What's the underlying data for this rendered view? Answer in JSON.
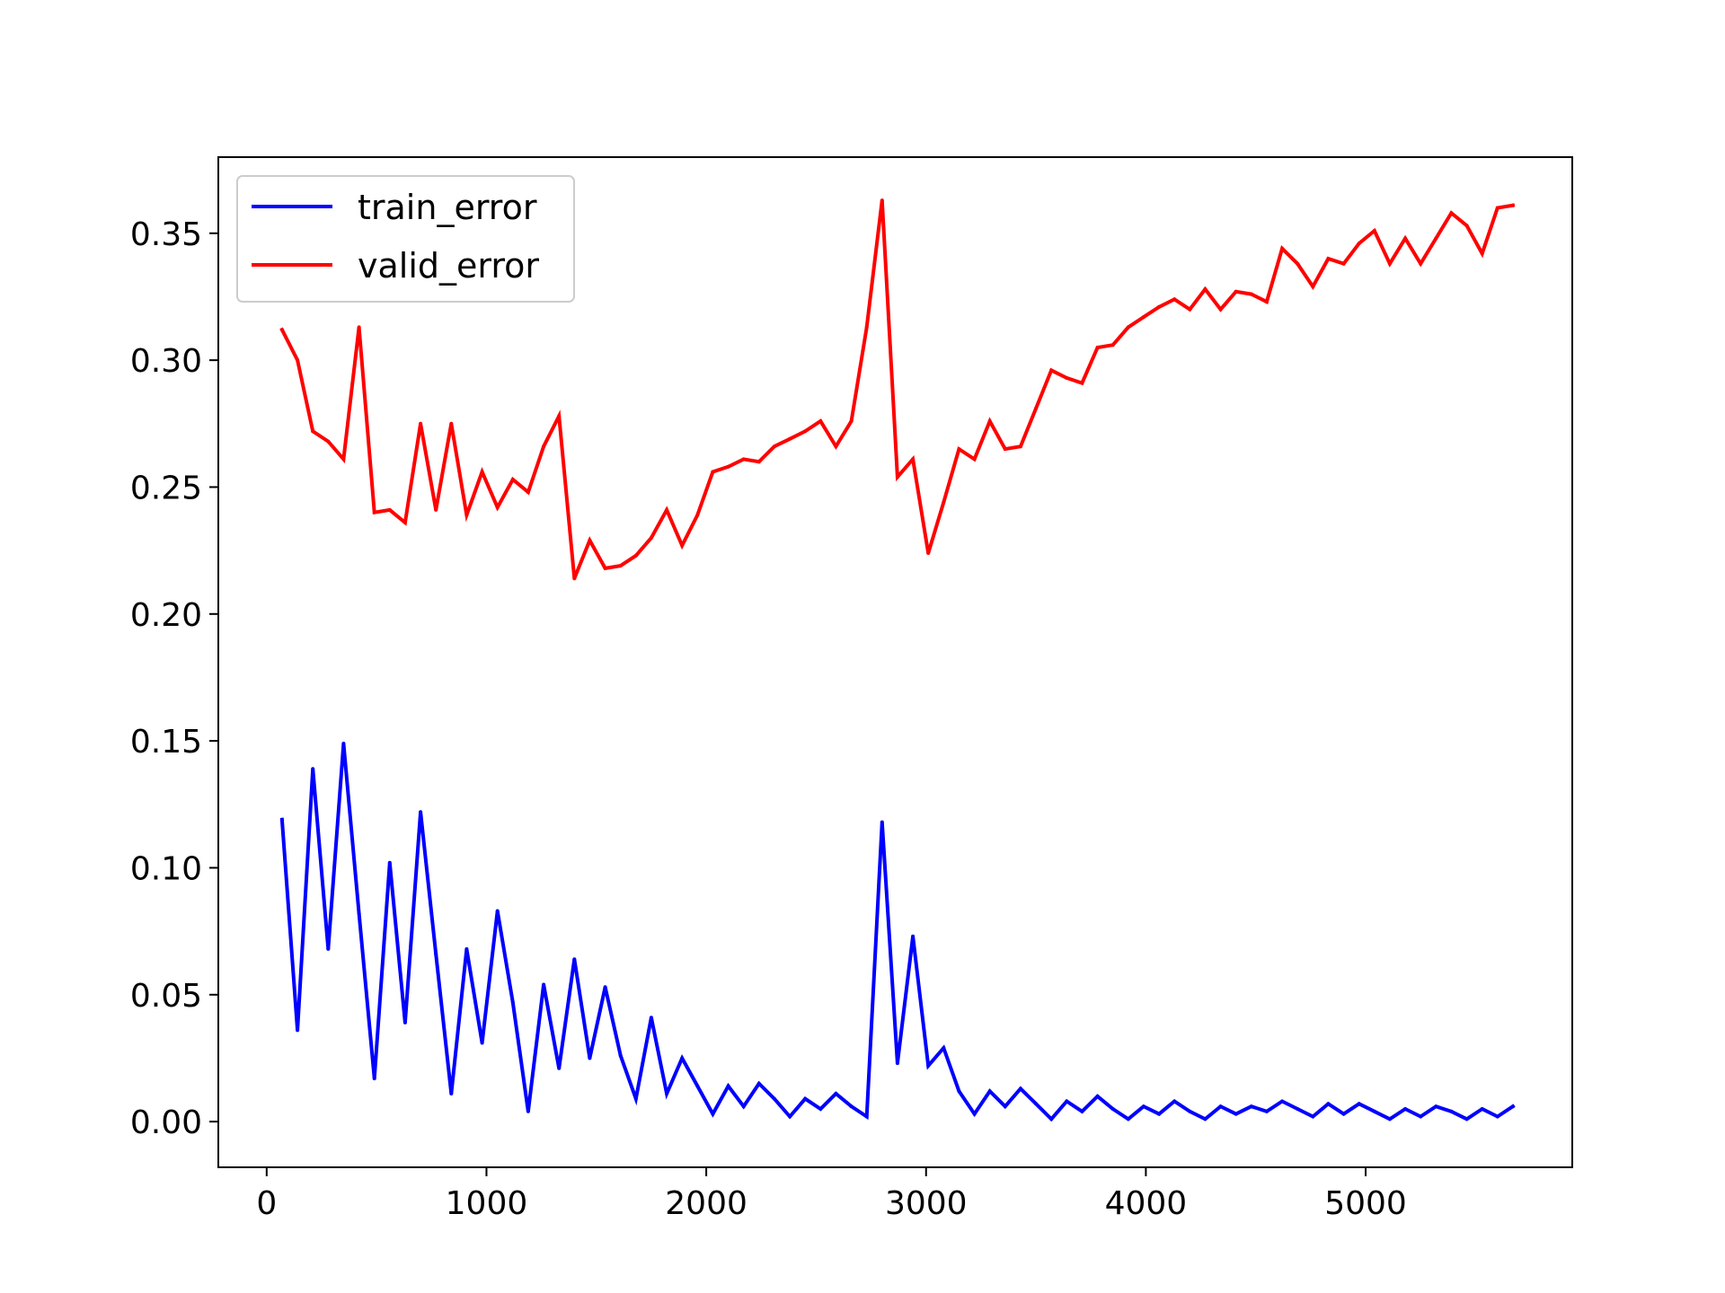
{
  "chart_data": {
    "type": "line",
    "title": "",
    "xlabel": "",
    "ylabel": "",
    "xlim": [
      -220,
      5940
    ],
    "ylim": [
      -0.018,
      0.38
    ],
    "xticks": [
      0,
      1000,
      2000,
      3000,
      4000,
      5000
    ],
    "xtick_labels": [
      "0",
      "1000",
      "2000",
      "3000",
      "4000",
      "5000"
    ],
    "yticks": [
      0.0,
      0.05,
      0.1,
      0.15,
      0.2,
      0.25,
      0.3,
      0.35
    ],
    "ytick_labels": [
      "0.00",
      "0.05",
      "0.10",
      "0.15",
      "0.20",
      "0.25",
      "0.30",
      "0.35"
    ],
    "grid": false,
    "legend_position": "upper-left",
    "x": [
      70,
      140,
      210,
      280,
      350,
      420,
      490,
      560,
      630,
      700,
      770,
      840,
      910,
      980,
      1050,
      1120,
      1190,
      1260,
      1330,
      1400,
      1470,
      1540,
      1610,
      1680,
      1750,
      1820,
      1890,
      1960,
      2030,
      2100,
      2170,
      2240,
      2310,
      2380,
      2450,
      2520,
      2590,
      2660,
      2730,
      2800,
      2870,
      2940,
      3010,
      3080,
      3150,
      3220,
      3290,
      3360,
      3430,
      3500,
      3570,
      3640,
      3710,
      3780,
      3850,
      3920,
      3990,
      4060,
      4130,
      4200,
      4270,
      4340,
      4410,
      4480,
      4550,
      4620,
      4690,
      4760,
      4830,
      4900,
      4970,
      5040,
      5110,
      5180,
      5250,
      5320,
      5390,
      5460,
      5530,
      5600,
      5670
    ],
    "series": [
      {
        "name": "train_error",
        "color": "#0000ff",
        "values": [
          0.119,
          0.036,
          0.139,
          0.068,
          0.149,
          0.082,
          0.017,
          0.102,
          0.039,
          0.122,
          0.066,
          0.011,
          0.068,
          0.031,
          0.083,
          0.047,
          0.004,
          0.054,
          0.021,
          0.064,
          0.025,
          0.053,
          0.026,
          0.009,
          0.041,
          0.011,
          0.025,
          0.014,
          0.003,
          0.014,
          0.006,
          0.015,
          0.009,
          0.002,
          0.009,
          0.005,
          0.011,
          0.006,
          0.002,
          0.118,
          0.023,
          0.073,
          0.022,
          0.029,
          0.012,
          0.003,
          0.012,
          0.006,
          0.013,
          0.007,
          0.001,
          0.008,
          0.004,
          0.01,
          0.005,
          0.001,
          0.006,
          0.003,
          0.008,
          0.004,
          0.001,
          0.006,
          0.003,
          0.006,
          0.004,
          0.008,
          0.005,
          0.002,
          0.007,
          0.003,
          0.007,
          0.004,
          0.001,
          0.005,
          0.002,
          0.006,
          0.004,
          0.001,
          0.005,
          0.002,
          0.006
        ]
      },
      {
        "name": "valid_error",
        "color": "#ff0000",
        "values": [
          0.312,
          0.3,
          0.272,
          0.268,
          0.261,
          0.313,
          0.24,
          0.241,
          0.236,
          0.275,
          0.241,
          0.275,
          0.239,
          0.256,
          0.242,
          0.253,
          0.248,
          0.266,
          0.278,
          0.214,
          0.229,
          0.218,
          0.219,
          0.223,
          0.23,
          0.241,
          0.227,
          0.239,
          0.256,
          0.258,
          0.261,
          0.26,
          0.266,
          0.269,
          0.272,
          0.276,
          0.266,
          0.276,
          0.313,
          0.363,
          0.254,
          0.261,
          0.224,
          0.244,
          0.265,
          0.261,
          0.276,
          0.265,
          0.266,
          0.281,
          0.296,
          0.293,
          0.291,
          0.305,
          0.306,
          0.313,
          0.317,
          0.321,
          0.324,
          0.32,
          0.328,
          0.32,
          0.327,
          0.326,
          0.323,
          0.344,
          0.338,
          0.329,
          0.34,
          0.338,
          0.346,
          0.351,
          0.338,
          0.348,
          0.338,
          0.348,
          0.358,
          0.353,
          0.342,
          0.36,
          0.361
        ]
      }
    ]
  }
}
